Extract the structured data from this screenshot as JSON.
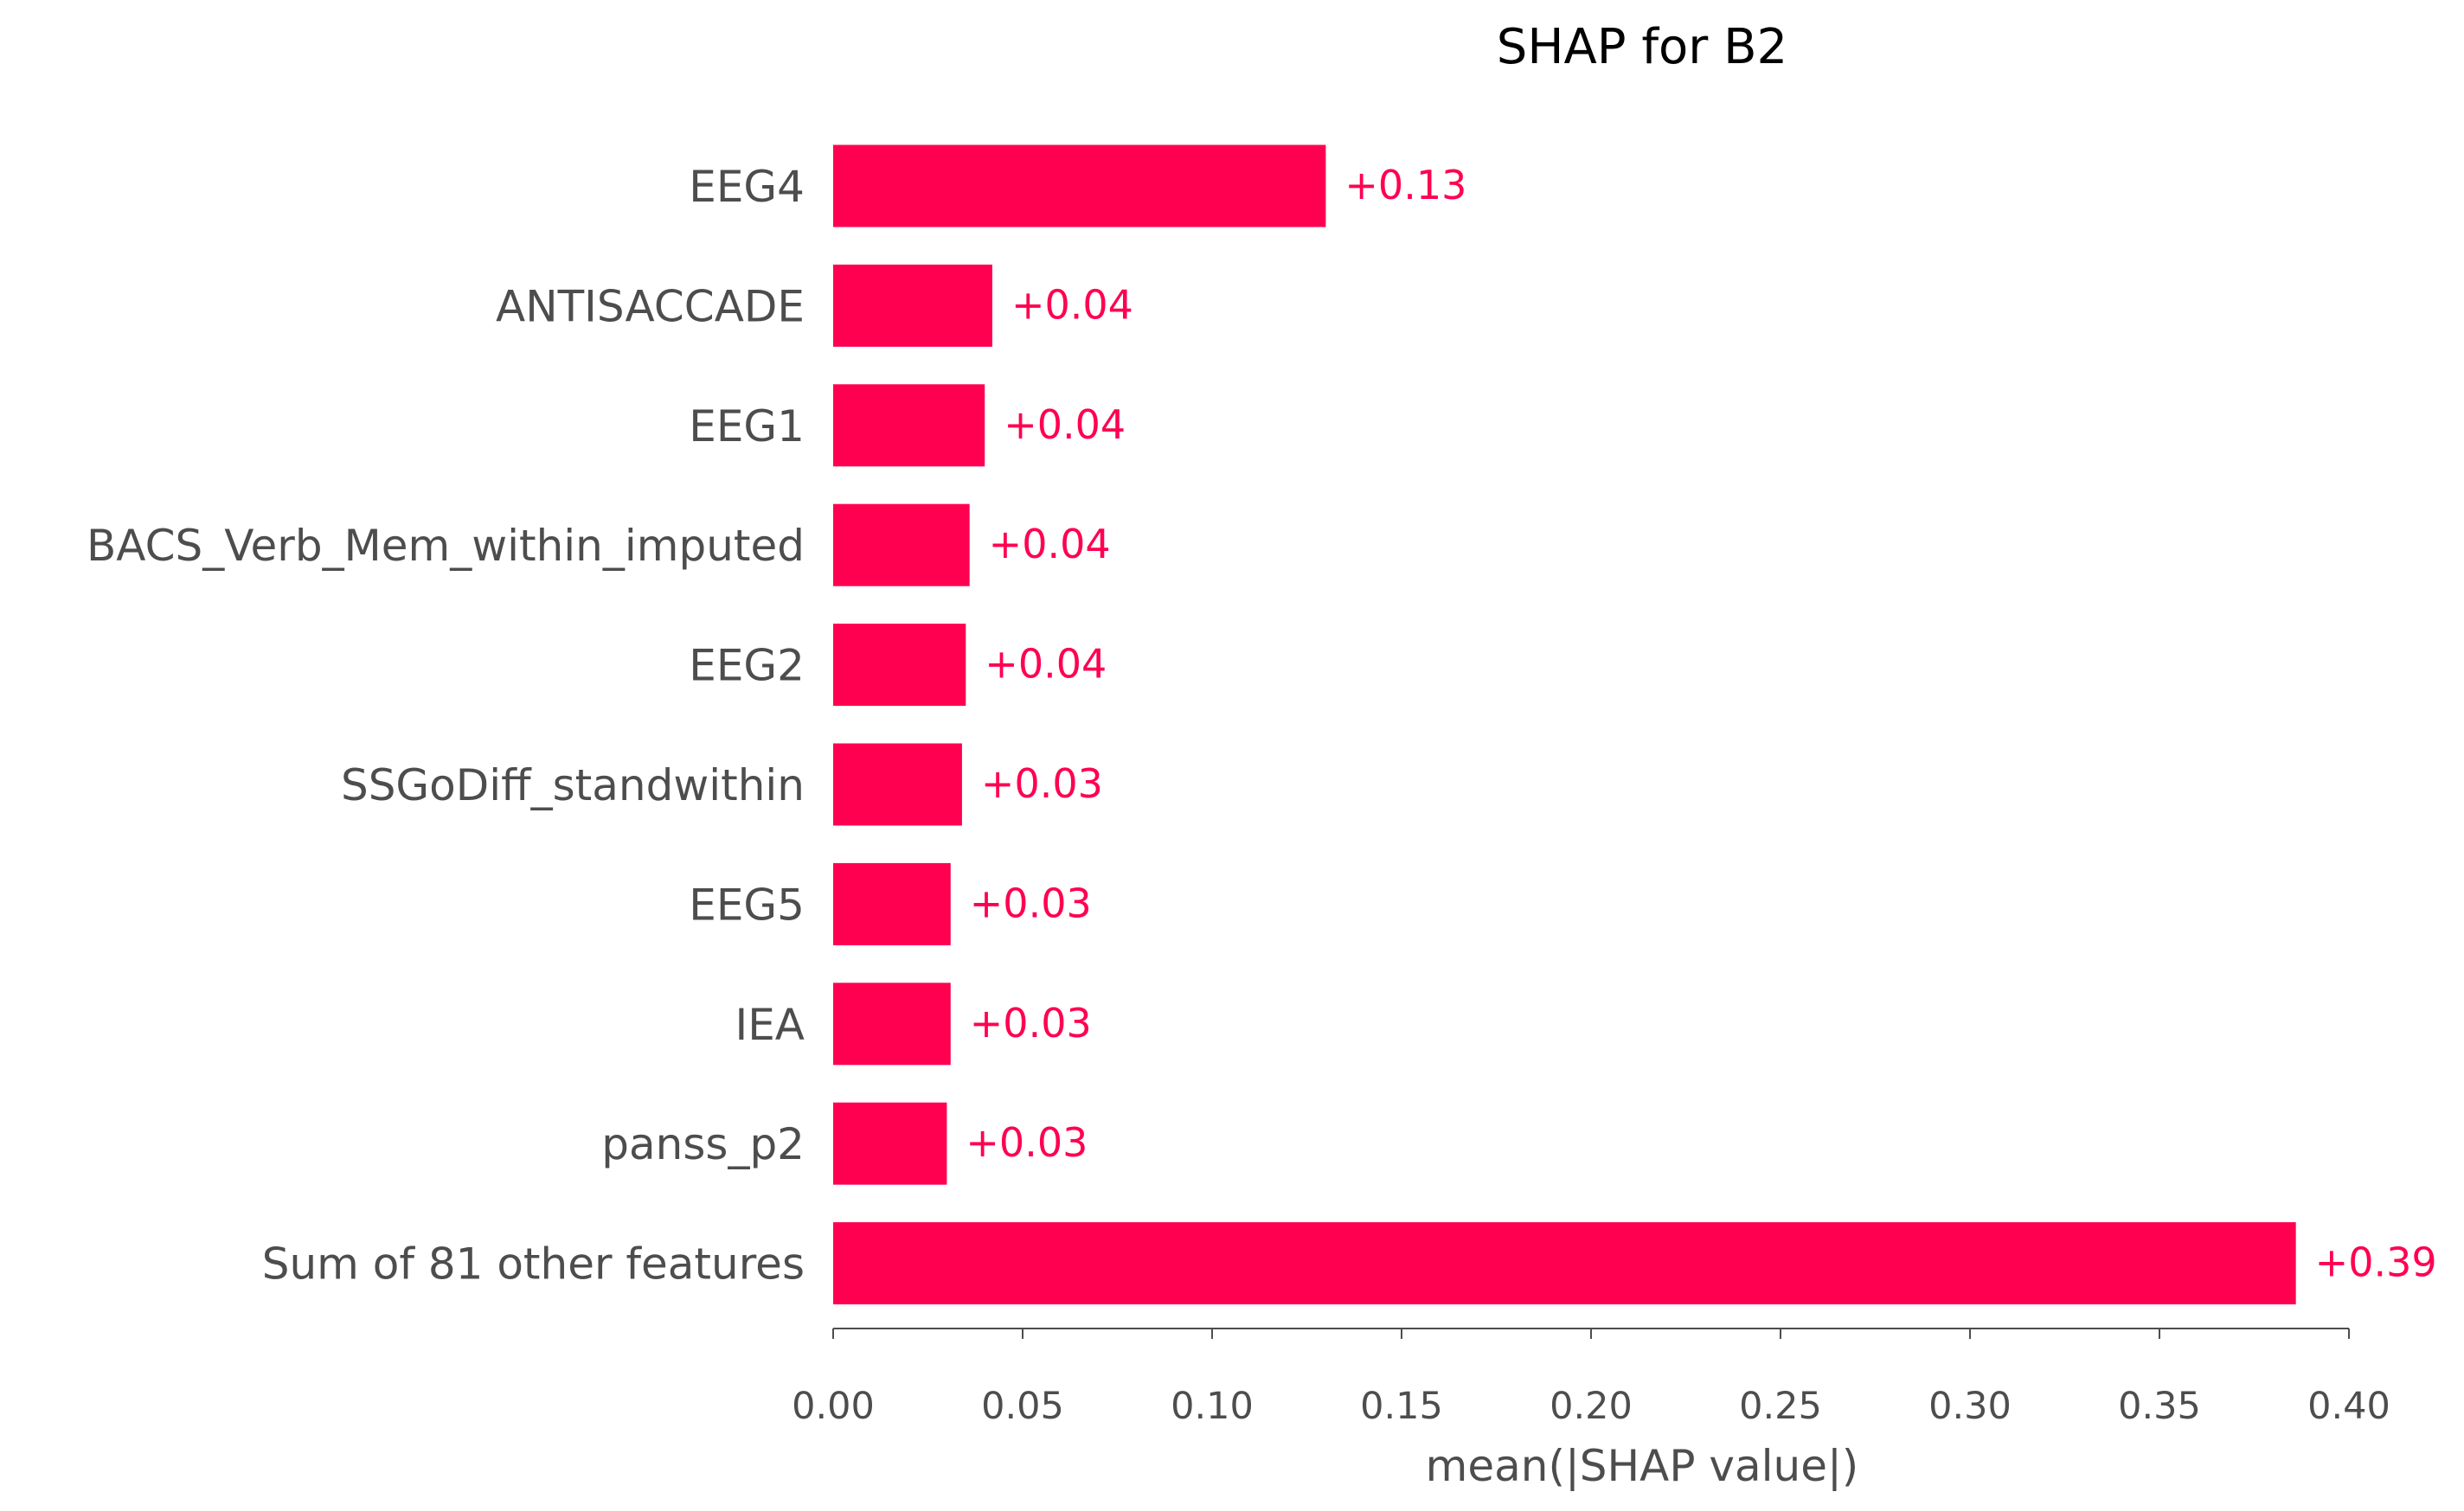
{
  "chart_data": {
    "type": "bar",
    "orientation": "horizontal",
    "title": "SHAP for B2",
    "xlabel": "mean(|SHAP value|)",
    "ylabel": "",
    "xlim": [
      0.0,
      0.4
    ],
    "xticks": [
      0.0,
      0.05,
      0.1,
      0.15,
      0.2,
      0.25,
      0.3,
      0.35,
      0.4
    ],
    "xtick_labels": [
      "0.00",
      "0.05",
      "0.10",
      "0.15",
      "0.20",
      "0.25",
      "0.30",
      "0.35",
      "0.40"
    ],
    "categories": [
      "EEG4",
      "ANTISACCADE",
      "EEG1",
      "BACS_Verb_Mem_within_imputed",
      "EEG2",
      "SSGoDiff_standwithin",
      "EEG5",
      "IEA",
      "panss_p2",
      "Sum of 81 other features"
    ],
    "values": [
      0.13,
      0.042,
      0.04,
      0.036,
      0.035,
      0.034,
      0.031,
      0.031,
      0.03,
      0.386
    ],
    "value_labels": [
      "+0.13",
      "+0.04",
      "+0.04",
      "+0.04",
      "+0.04",
      "+0.03",
      "+0.03",
      "+0.03",
      "+0.03",
      "+0.39"
    ],
    "grid": false,
    "legend": "none",
    "colors": {
      "bar": "#ff0051",
      "value_text": "#ff0051",
      "axis_text": "#4d4d4d",
      "axis_line": "#4d4d4d",
      "title_text": "#000000"
    }
  }
}
